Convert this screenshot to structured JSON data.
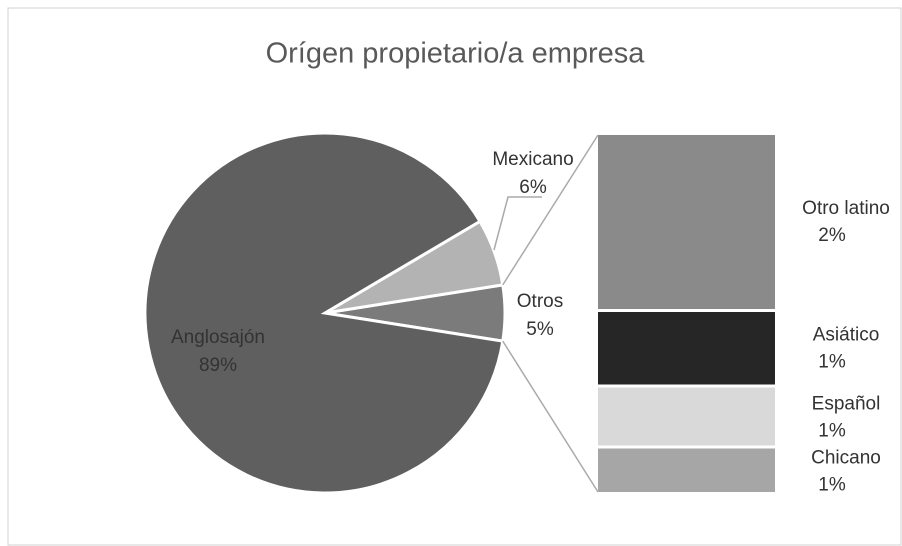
{
  "chart_data": {
    "type": "pie-of-bar",
    "title": "Orígen propietario/a empresa",
    "pie": {
      "categories": [
        "Anglosajón",
        "Mexicano",
        "Otros"
      ],
      "values": [
        89,
        6,
        5
      ],
      "value_labels": [
        "89%",
        "6%",
        "5%"
      ],
      "colors": [
        "#5f5f5f",
        "#b3b3b3",
        "#7b7b7b"
      ]
    },
    "bar": {
      "categories": [
        "Otro latino",
        "Asiático",
        "Español",
        "Chicano"
      ],
      "values": [
        2.4,
        1,
        0.8,
        0.6
      ],
      "value_labels": [
        "2%",
        "1%",
        "1%",
        "1%"
      ],
      "colors": [
        "#8a8a8a",
        "#262626",
        "#d9d9d9",
        "#a6a6a6"
      ]
    }
  }
}
